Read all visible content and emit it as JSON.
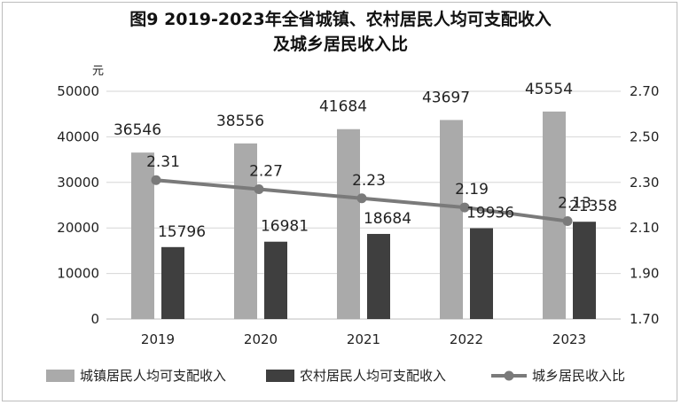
{
  "chart_data": {
    "type": "bar",
    "title_line1": "图9 2019-2023年全省城镇、农村居民人均可支配收入",
    "title_line2": "及城乡居民收入比",
    "y_unit": "元",
    "categories": [
      "2019",
      "2020",
      "2021",
      "2022",
      "2023"
    ],
    "series": [
      {
        "name": "城镇居民人均可支配收入",
        "type": "bar",
        "axis": "left",
        "color": "#aaaaaa",
        "values": [
          36546,
          38556,
          41684,
          43697,
          45554
        ]
      },
      {
        "name": "农村居民人均可支配收入",
        "type": "bar",
        "axis": "left",
        "color": "#3f3f3f",
        "values": [
          15796,
          16981,
          18684,
          19936,
          21358
        ]
      },
      {
        "name": "城乡居民收入比",
        "type": "line",
        "axis": "right",
        "color": "#7a7a7a",
        "values": [
          2.31,
          2.27,
          2.23,
          2.19,
          2.13
        ]
      }
    ],
    "ratio_labels": [
      "2.31",
      "2.27",
      "2.23",
      "2.19",
      "2.13"
    ],
    "y_left": {
      "min": 0,
      "max": 50000,
      "ticks": [
        "0",
        "10000",
        "20000",
        "30000",
        "40000",
        "50000"
      ]
    },
    "y_right": {
      "min": 1.7,
      "max": 2.7,
      "ticks": [
        "1.70",
        "1.90",
        "2.10",
        "2.30",
        "2.50",
        "2.70"
      ]
    },
    "grid": true,
    "legend_position": "bottom"
  }
}
